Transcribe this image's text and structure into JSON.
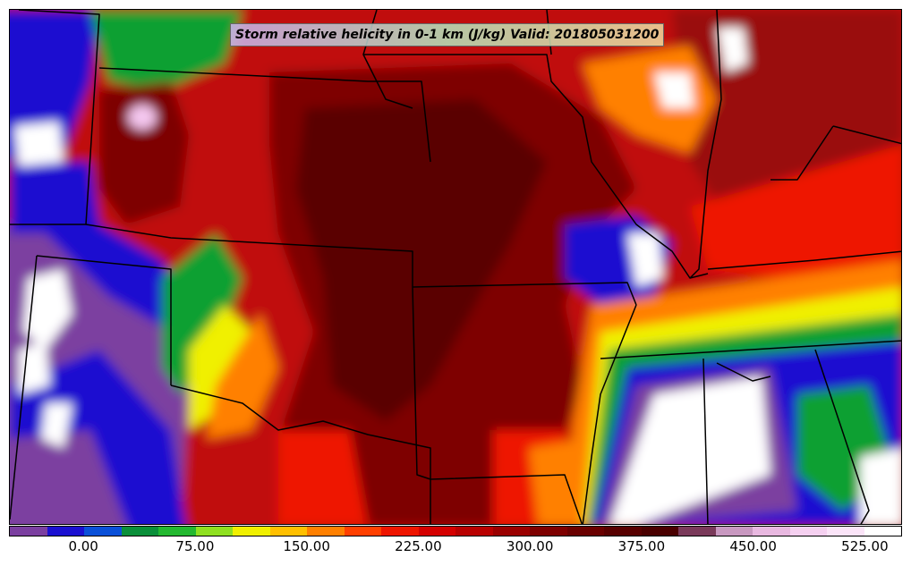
{
  "map": {
    "title": "Storm relative helicity in 0-1 km (J/kg) Valid: 201805031200",
    "field_colors": {
      "purple": "#7b3fa0",
      "blue": "#1a10d0",
      "green": "#10a030",
      "yellow": "#f0f000",
      "orange": "#ff8000",
      "red": "#ee1500",
      "dark_red": "#9a0a0a",
      "maroon": "#5a0000",
      "pink": "#f5c8f0",
      "white": "#ffffff"
    }
  },
  "colorbar": {
    "colors": [
      "#7b3fa0",
      "#1a10d0",
      "#0a50d8",
      "#0a8f3a",
      "#23b830",
      "#8fe020",
      "#f0f000",
      "#ffc000",
      "#ff8000",
      "#ff4000",
      "#ee1500",
      "#d40000",
      "#b80000",
      "#9a0000",
      "#7e0000",
      "#6a0000",
      "#580000",
      "#4a0000",
      "#7a3a5a",
      "#c898c0",
      "#e8b8e0",
      "#f5d0f0",
      "#fbe4f8",
      "#ffffff"
    ],
    "tick_labels": [
      "0.00",
      "75.00",
      "150.00",
      "225.00",
      "300.00",
      "375.00",
      "450.00",
      "525.00"
    ]
  }
}
